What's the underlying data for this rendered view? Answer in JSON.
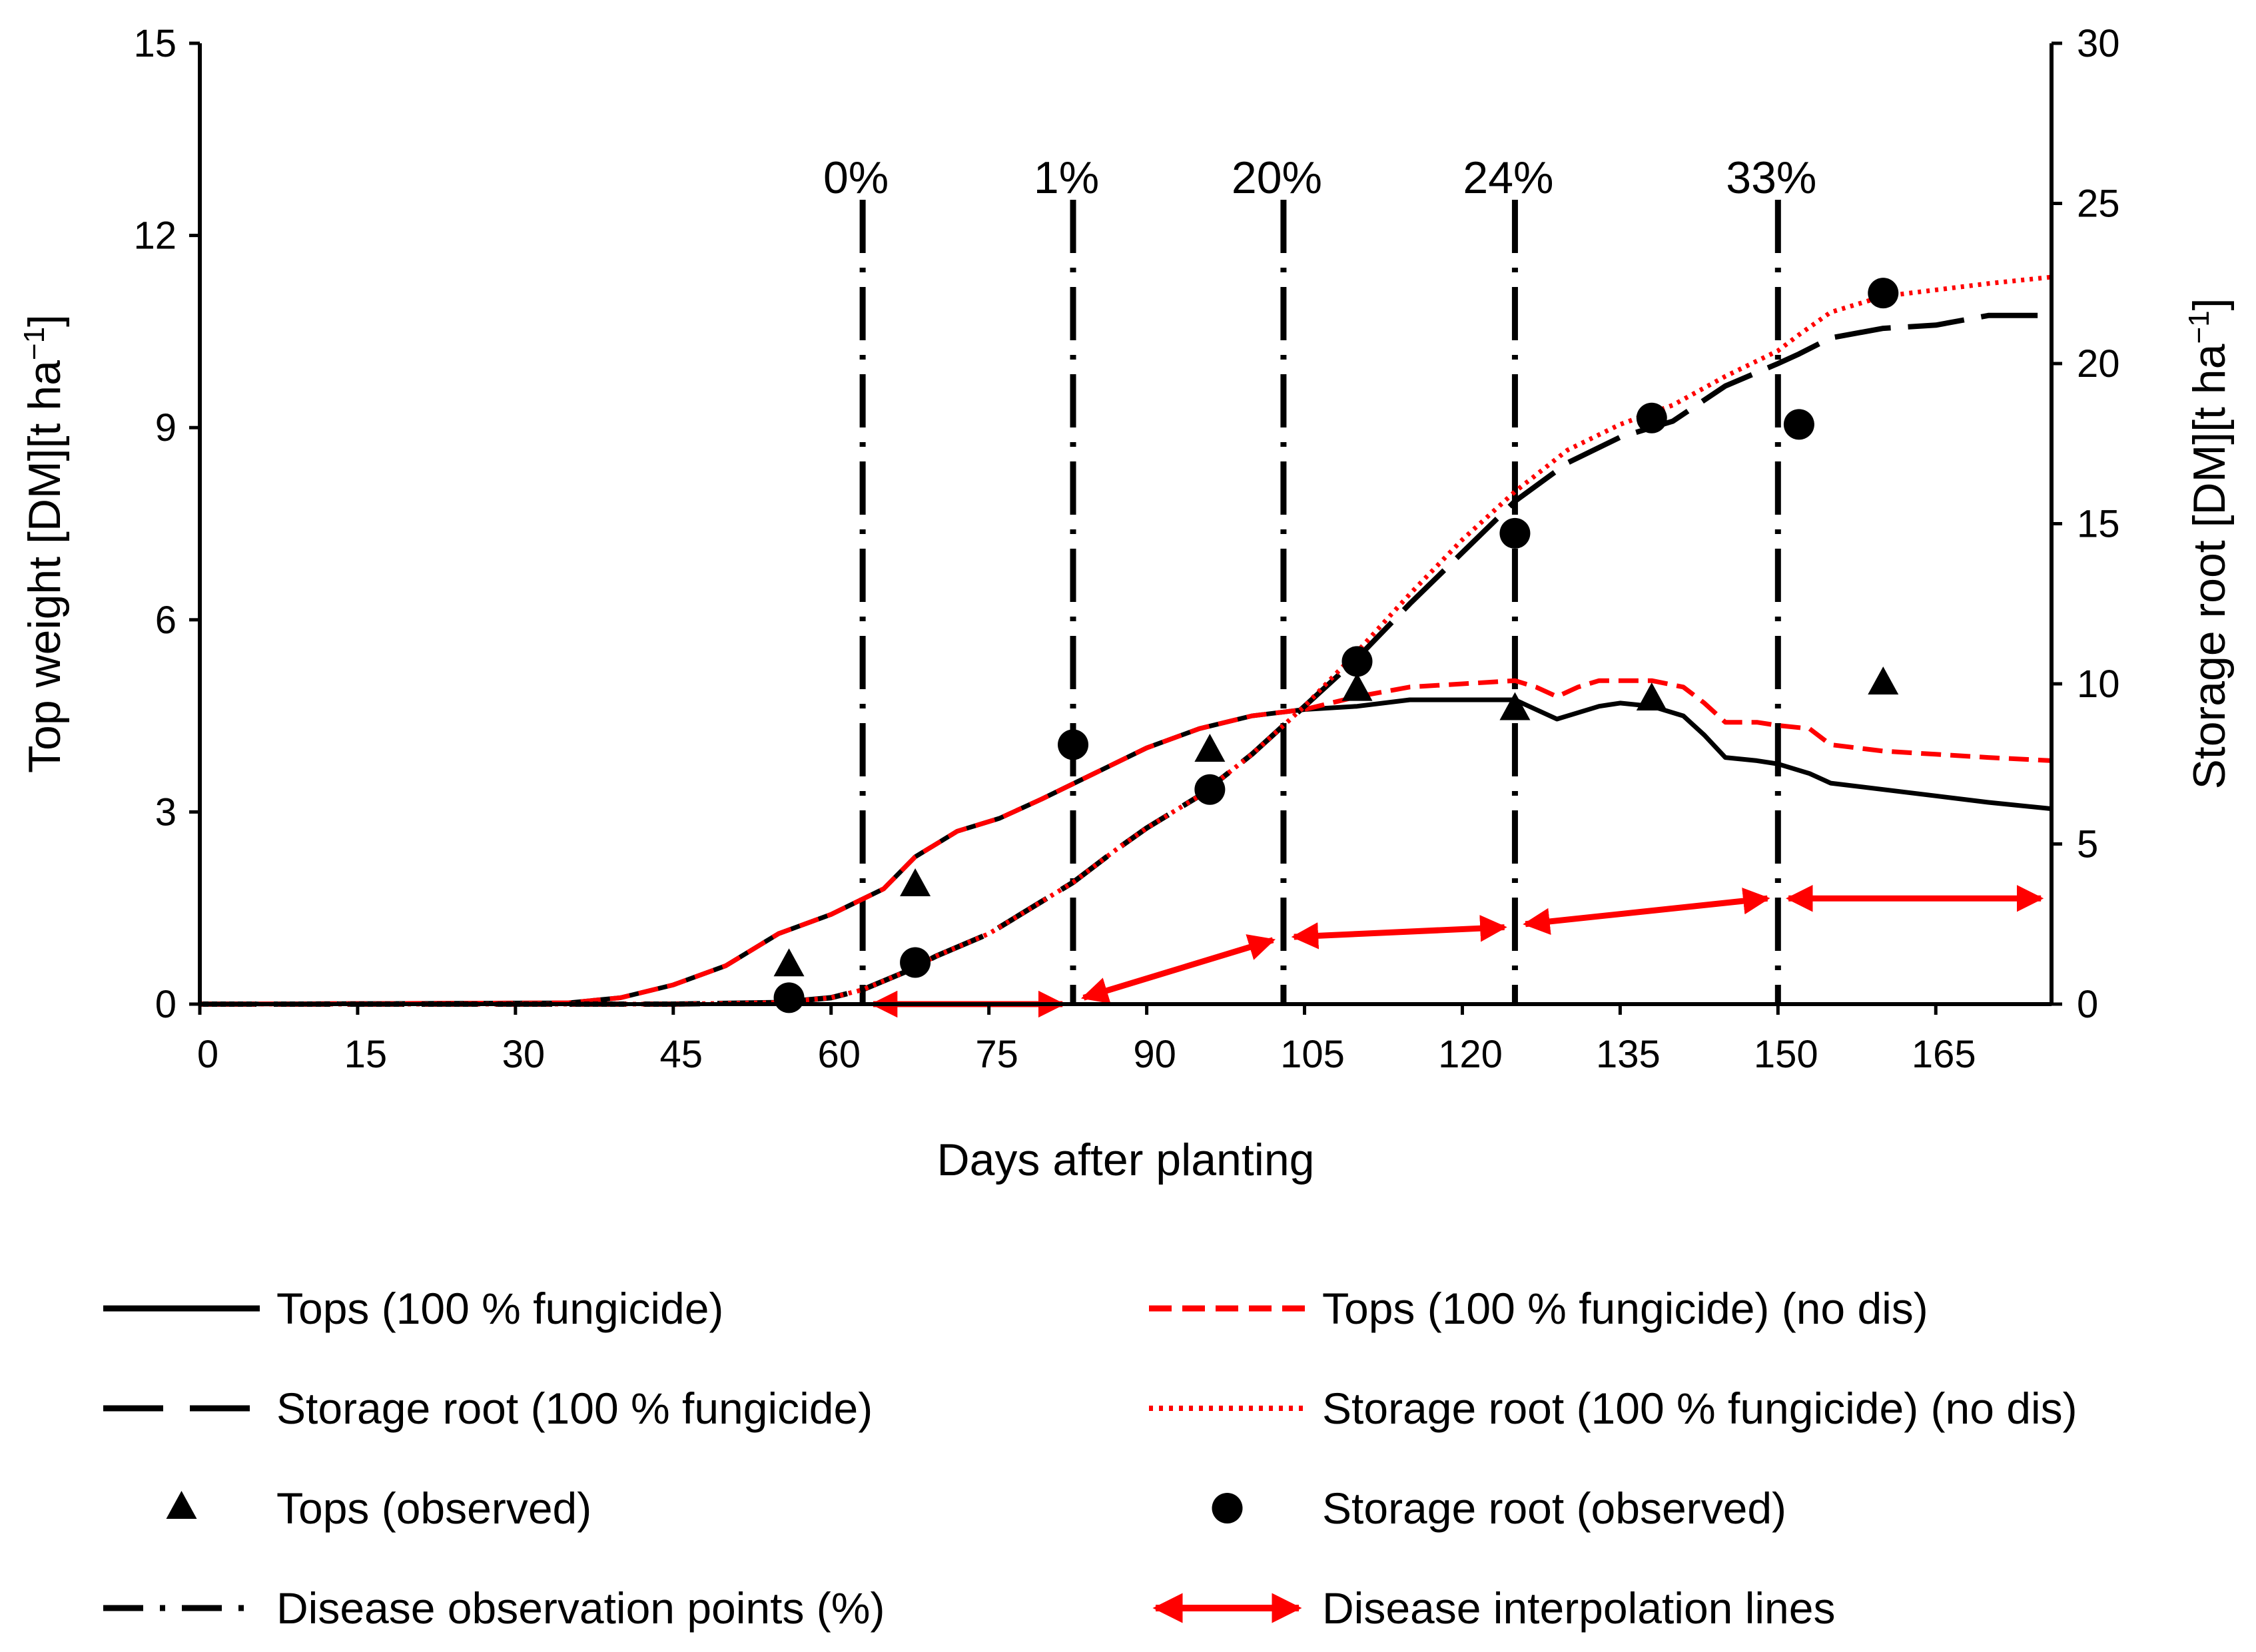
{
  "chart_data": {
    "type": "line",
    "xlabel": "Days after planting",
    "ylabel_left": "Top weight [DM][t ha",
    "ylabel_left_unit": "−1",
    "ylabel_left_close": "]",
    "ylabel_right": "Storage root [DM][t ha",
    "ylabel_right_unit": "−1",
    "ylabel_right_close": "]",
    "xlim": [
      0,
      176
    ],
    "xticks": [
      0,
      15,
      30,
      45,
      60,
      75,
      90,
      105,
      120,
      135,
      150,
      165
    ],
    "ylim_left": [
      0,
      15
    ],
    "yticks_left": [
      0,
      3,
      6,
      9,
      12,
      15
    ],
    "ylim_right": [
      0,
      30
    ],
    "yticks_right": [
      0,
      5,
      10,
      15,
      20,
      25,
      30
    ],
    "series": [
      {
        "name": "Tops (100 % fungicide)",
        "axis": "left",
        "color": "#000000",
        "style": "solid",
        "x": [
          0,
          35,
          40,
          45,
          50,
          55,
          60,
          65,
          68,
          72,
          76,
          80,
          85,
          90,
          95,
          100,
          105,
          110,
          115,
          120,
          125,
          127,
          129,
          131,
          133,
          135,
          138,
          141,
          143,
          145,
          148,
          150,
          153,
          155,
          160,
          165,
          170,
          176
        ],
        "values": [
          0,
          0.02,
          0.1,
          0.3,
          0.6,
          1.1,
          1.4,
          1.8,
          2.3,
          2.7,
          2.9,
          3.2,
          3.6,
          4.0,
          4.3,
          4.5,
          4.6,
          4.65,
          4.75,
          4.75,
          4.75,
          4.6,
          4.45,
          4.55,
          4.65,
          4.7,
          4.65,
          4.5,
          4.2,
          3.85,
          3.8,
          3.75,
          3.6,
          3.45,
          3.35,
          3.25,
          3.15,
          3.05
        ]
      },
      {
        "name": "Tops (100 % fungicide) (no dis)",
        "axis": "left",
        "color": "#ff0000",
        "style": "dashed",
        "x": [
          0,
          35,
          40,
          45,
          50,
          55,
          60,
          65,
          68,
          72,
          76,
          80,
          85,
          90,
          95,
          100,
          105,
          110,
          115,
          120,
          125,
          127,
          129,
          131,
          133,
          135,
          138,
          141,
          143,
          145,
          148,
          150,
          153,
          155,
          160,
          165,
          170,
          176
        ],
        "values": [
          0,
          0.02,
          0.1,
          0.3,
          0.6,
          1.1,
          1.4,
          1.8,
          2.3,
          2.7,
          2.9,
          3.2,
          3.6,
          4.0,
          4.3,
          4.5,
          4.6,
          4.8,
          4.95,
          5.0,
          5.05,
          4.95,
          4.8,
          4.95,
          5.05,
          5.05,
          5.05,
          4.95,
          4.7,
          4.4,
          4.4,
          4.35,
          4.3,
          4.05,
          3.95,
          3.9,
          3.85,
          3.8
        ]
      },
      {
        "name": "Storage root (100 % fungicide)",
        "axis": "right",
        "color": "#000000",
        "style": "longdash",
        "x": [
          0,
          45,
          55,
          60,
          63,
          67,
          70,
          75,
          80,
          83,
          87,
          90,
          95,
          100,
          105,
          110,
          115,
          120,
          125,
          130,
          135,
          140,
          145,
          150,
          152,
          155,
          160,
          165,
          170,
          176
        ],
        "values": [
          0,
          0,
          0.05,
          0.2,
          0.45,
          1.0,
          1.5,
          2.2,
          3.2,
          3.8,
          4.8,
          5.5,
          6.5,
          7.8,
          9.3,
          10.8,
          12.5,
          14.1,
          15.7,
          16.9,
          17.7,
          18.2,
          19.3,
          20.0,
          20.3,
          20.8,
          21.1,
          21.2,
          21.5,
          21.5
        ]
      },
      {
        "name": "Storage root (100 % fungicide) (no dis)",
        "axis": "right",
        "color": "#ff0000",
        "style": "dotted",
        "x": [
          0,
          45,
          55,
          60,
          63,
          67,
          70,
          75,
          80,
          83,
          87,
          90,
          95,
          100,
          105,
          110,
          115,
          120,
          125,
          130,
          135,
          140,
          145,
          150,
          152,
          155,
          160,
          165,
          170,
          176
        ],
        "values": [
          0,
          0,
          0.05,
          0.2,
          0.45,
          1.0,
          1.5,
          2.2,
          3.2,
          3.8,
          4.8,
          5.5,
          6.5,
          7.8,
          9.3,
          11.0,
          12.8,
          14.5,
          16.0,
          17.3,
          18.1,
          18.7,
          19.6,
          20.4,
          20.9,
          21.6,
          22.1,
          22.3,
          22.5,
          22.7
        ]
      }
    ],
    "observed_tops": {
      "name": "Tops (observed)",
      "axis": "left",
      "x": [
        56,
        68,
        96,
        110,
        125,
        138,
        160
      ],
      "values": [
        0.6,
        1.85,
        3.95,
        4.9,
        4.6,
        4.75,
        5.0
      ]
    },
    "observed_root": {
      "name": "Storage root (observed)",
      "axis": "right",
      "x": [
        56,
        68,
        83,
        96,
        110,
        125,
        138,
        152,
        160
      ],
      "values": [
        0.2,
        1.3,
        8.1,
        6.7,
        10.7,
        14.7,
        18.3,
        18.1,
        22.2
      ]
    },
    "disease_points": {
      "name": "Disease observation points (%)",
      "x": [
        63,
        83,
        103,
        125,
        150
      ],
      "labels": [
        "0%",
        "1%",
        "20%",
        "24%",
        "33%"
      ]
    },
    "interpolation_arrows": {
      "name": "Disease interpolation lines",
      "segments": [
        {
          "x1": 64,
          "y1": 0.0,
          "x2": 82,
          "y2": 0.0,
          "heads": "both"
        },
        {
          "x1": 84,
          "y1": 0.1,
          "x2": 102,
          "y2": 1.0,
          "heads": "both"
        },
        {
          "x1": 104,
          "y1": 1.05,
          "x2": 124,
          "y2": 1.2,
          "heads": "both"
        },
        {
          "x1": 126,
          "y1": 1.25,
          "x2": 149,
          "y2": 1.65,
          "heads": "both"
        },
        {
          "x1": 151,
          "y1": 1.65,
          "x2": 175,
          "y2": 1.65,
          "heads": "both"
        }
      ]
    },
    "legend": [
      {
        "label": "Tops (100 % fungicide)",
        "kind": "solid"
      },
      {
        "label": "Tops (100 % fungicide) (no dis)",
        "kind": "red-dashed"
      },
      {
        "label": "Storage root (100 % fungicide)",
        "kind": "longdash"
      },
      {
        "label": "Storage root (100 % fungicide) (no dis)",
        "kind": "red-dotted"
      },
      {
        "label": "Tops (observed)",
        "kind": "triangle"
      },
      {
        "label": "Storage root (observed)",
        "kind": "circle"
      },
      {
        "label": "Disease observation points (%)",
        "kind": "dashdot"
      },
      {
        "label": "Disease interpolation lines",
        "kind": "red-arrow"
      }
    ],
    "legend_position": "bottom"
  }
}
